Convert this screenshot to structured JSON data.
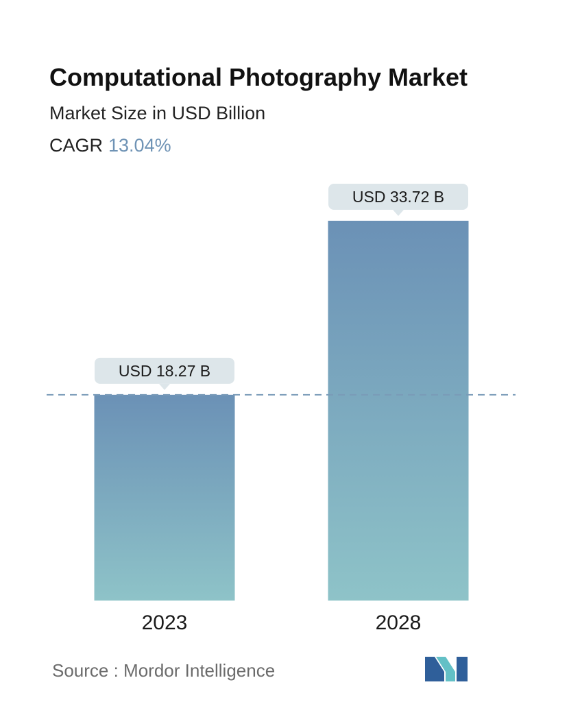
{
  "header": {
    "title": "Computational Photography Market",
    "subtitle": "Market Size in USD Billion",
    "cagr_label": "CAGR",
    "cagr_value": "13.04%"
  },
  "chart_data": {
    "type": "bar",
    "title": "Computational Photography Market",
    "subtitle": "Market Size in USD Billion",
    "categories": [
      "2023",
      "2028"
    ],
    "values": [
      18.27,
      33.72
    ],
    "data_labels": [
      "USD 18.27 B",
      "USD 33.72 B"
    ],
    "ylim": [
      0,
      33.72
    ],
    "reference_line": 18.27,
    "grid": false,
    "legend": "none"
  },
  "colors": {
    "bar_top": "#6b91b6",
    "bar_bottom": "#8ec3c8",
    "label_bg": "#dde6ea",
    "reference_line": "#7a9bb8",
    "cagr_value": "#6f93b5",
    "logo_dark": "#2f5f9a",
    "logo_light": "#63c0c6"
  },
  "footer": {
    "source": "Source :  Mordor Intelligence",
    "logo_icon": "mordor-intelligence-logo-icon"
  }
}
